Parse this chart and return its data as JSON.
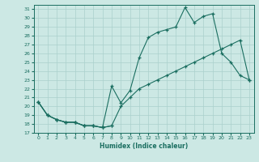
{
  "xlabel": "Humidex (Indice chaleur)",
  "bg_color": "#cce8e4",
  "line_color": "#1a6e60",
  "grid_color": "#aad0cc",
  "xlim": [
    -0.5,
    23.5
  ],
  "ylim": [
    17,
    31.5
  ],
  "yticks": [
    17,
    18,
    19,
    20,
    21,
    22,
    23,
    24,
    25,
    26,
    27,
    28,
    29,
    30,
    31
  ],
  "xticks": [
    0,
    1,
    2,
    3,
    4,
    5,
    6,
    7,
    8,
    9,
    10,
    11,
    12,
    13,
    14,
    15,
    16,
    17,
    18,
    19,
    20,
    21,
    22,
    23
  ],
  "bottom_x": [
    0,
    1,
    2,
    3,
    4,
    5,
    6,
    7,
    8
  ],
  "bottom_y": [
    20.5,
    19.0,
    18.5,
    18.2,
    18.2,
    17.8,
    17.8,
    17.6,
    17.8
  ],
  "spiky_x": [
    0,
    1,
    2,
    3,
    4,
    5,
    6,
    7,
    8,
    9,
    10,
    11,
    12,
    13,
    14,
    15,
    16,
    17,
    18,
    19,
    20,
    21,
    22,
    23
  ],
  "spiky_y": [
    20.5,
    19.0,
    18.5,
    18.2,
    18.2,
    17.8,
    17.8,
    17.6,
    22.3,
    20.4,
    21.8,
    25.5,
    27.8,
    28.4,
    28.7,
    29.0,
    31.2,
    29.5,
    30.2,
    30.5,
    26.0,
    25.0,
    23.5,
    23.0
  ],
  "linear_x": [
    0,
    1,
    2,
    3,
    4,
    5,
    6,
    7,
    8,
    9,
    10,
    11,
    12,
    13,
    14,
    15,
    16,
    17,
    18,
    19,
    20,
    21,
    22,
    23
  ],
  "linear_y": [
    20.5,
    19.0,
    18.5,
    18.2,
    18.2,
    17.8,
    17.8,
    17.6,
    17.8,
    20.0,
    21.0,
    22.0,
    22.5,
    23.0,
    23.5,
    24.0,
    24.5,
    25.0,
    25.5,
    26.0,
    26.5,
    27.0,
    27.5,
    23.0
  ]
}
